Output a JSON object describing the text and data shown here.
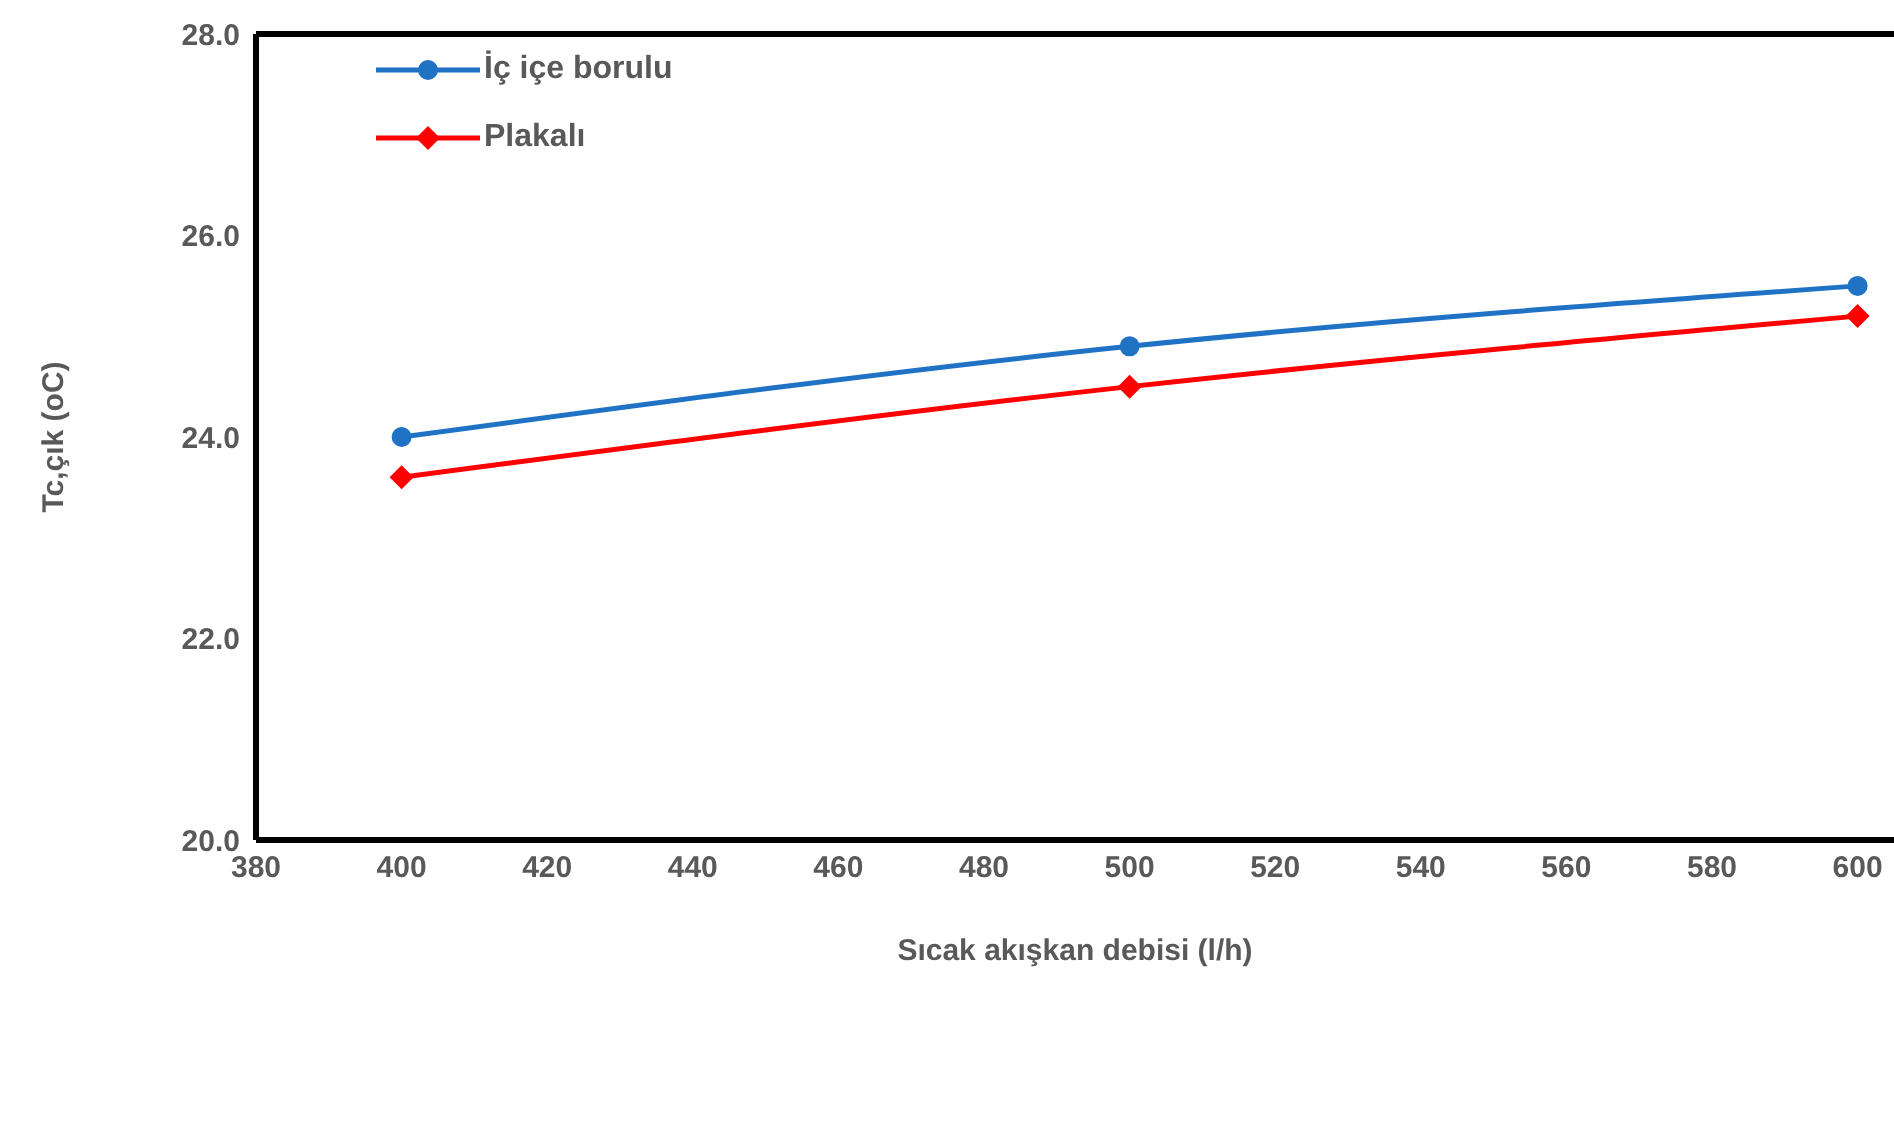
{
  "chart_data": {
    "type": "line",
    "xlabel": "Sıcak akışkan debisi (l/h)",
    "ylabel": "Tc,çık  (oC)",
    "x": [
      400,
      500,
      600
    ],
    "series": [
      {
        "name": "İç içe borulu",
        "color": "#1f72c4",
        "marker": "circle",
        "values": [
          24.0,
          24.9,
          25.5
        ]
      },
      {
        "name": "Plakalı",
        "color": "#ff0000",
        "marker": "diamond",
        "values": [
          23.6,
          24.5,
          25.2
        ]
      }
    ],
    "xlim": [
      380,
      605
    ],
    "xticks": [
      380,
      400,
      420,
      440,
      460,
      480,
      500,
      520,
      540,
      560,
      580,
      600
    ],
    "ylim": [
      20,
      28
    ],
    "yticks": [
      {
        "value": 20,
        "label": "20.0"
      },
      {
        "value": 22,
        "label": "22.0"
      },
      {
        "value": 24,
        "label": "24.0"
      },
      {
        "value": 26,
        "label": "26.0"
      },
      {
        "value": 28,
        "label": "28.0"
      }
    ],
    "grid": false,
    "legend": "top left"
  }
}
